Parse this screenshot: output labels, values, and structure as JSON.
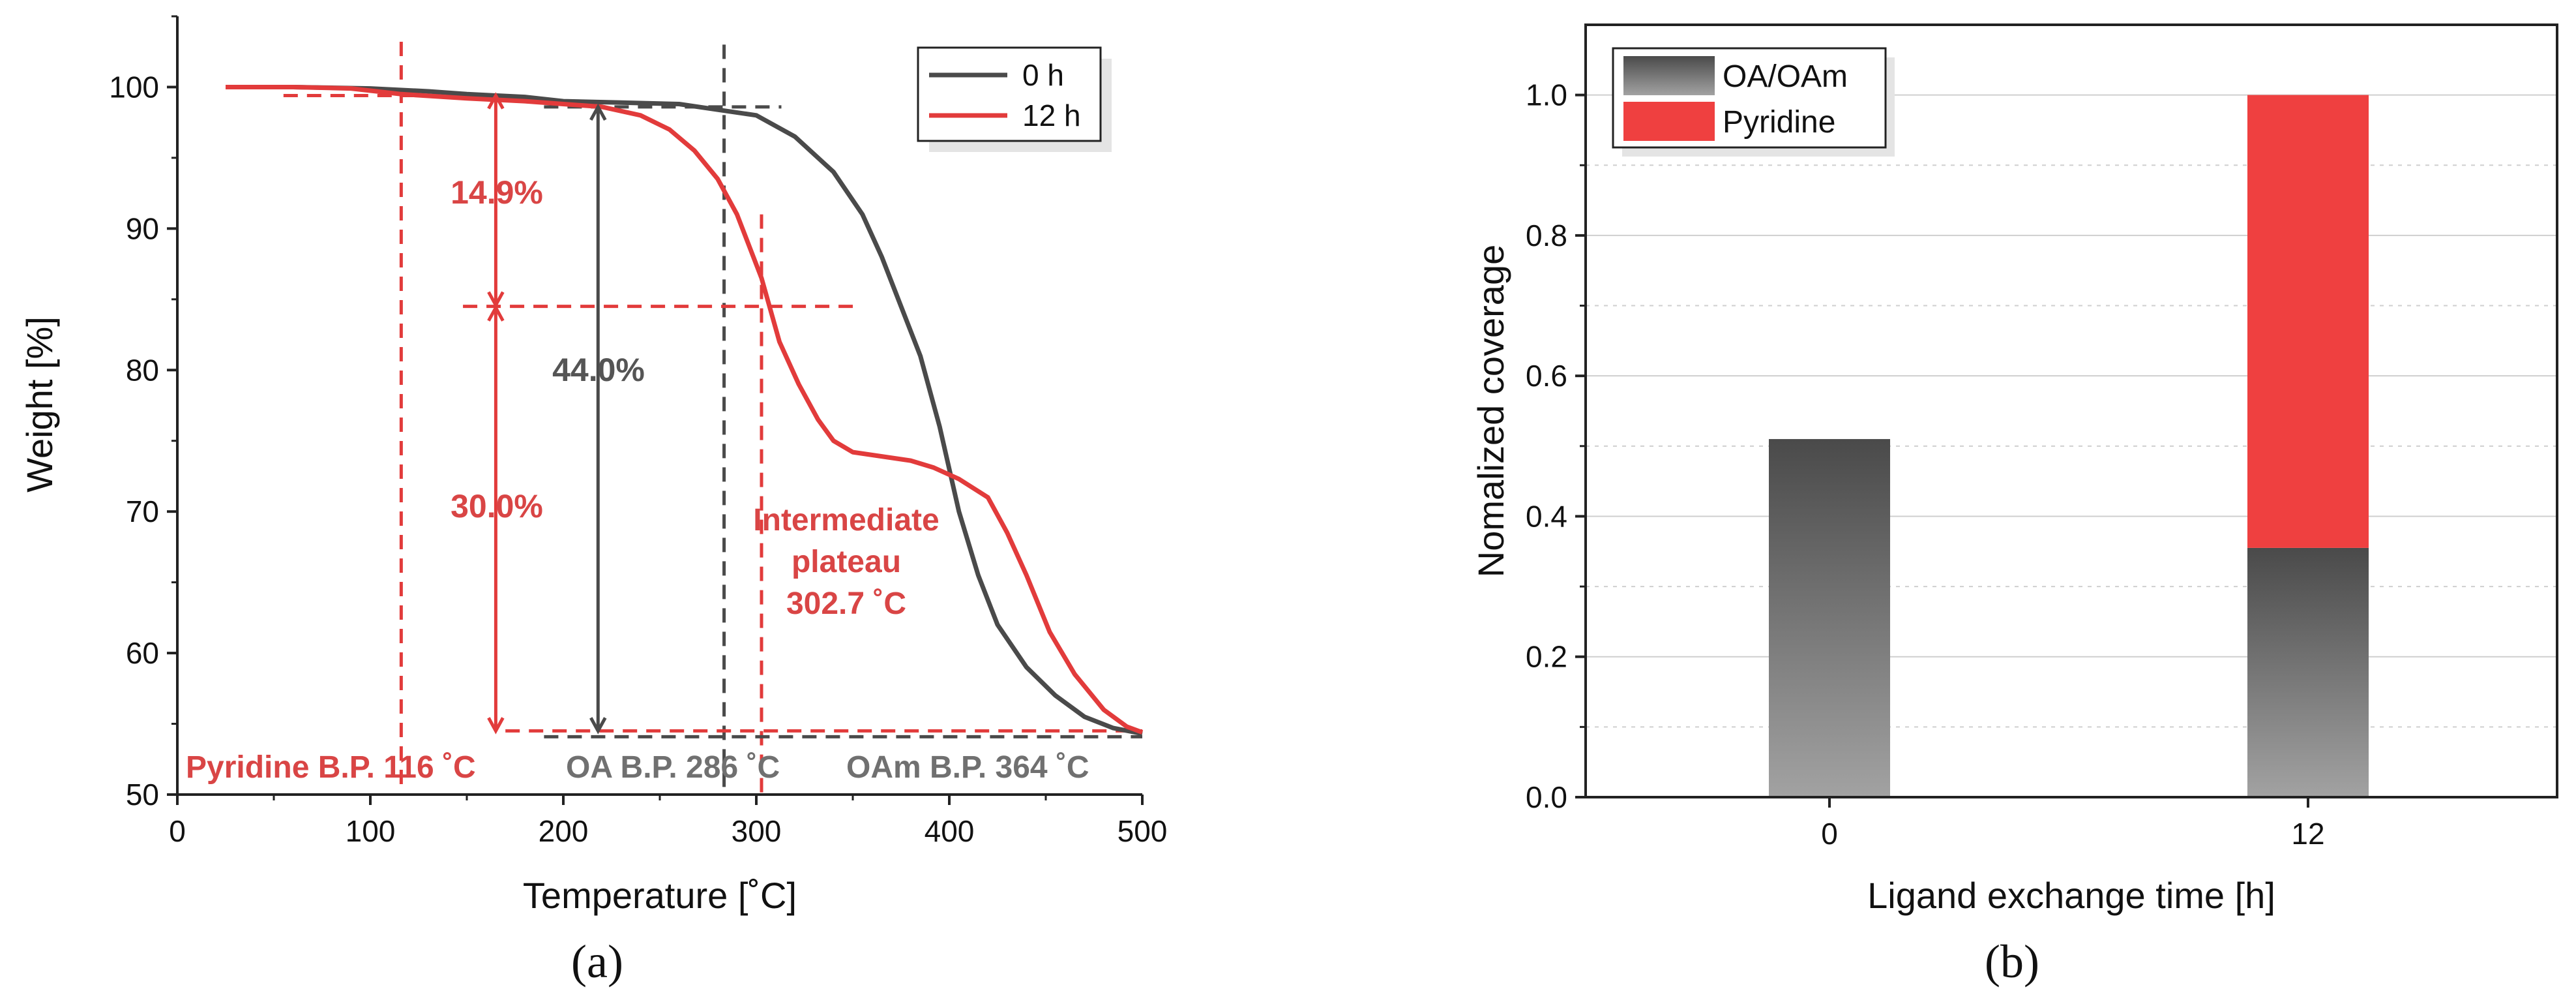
{
  "colors": {
    "dark": "#4a4a4a",
    "red": "#e23b3b",
    "red_text": "#d94545",
    "grid": "#cfcfcf",
    "axis": "#222222",
    "gray_grad_top": "#4a4a4a",
    "gray_grad_bottom": "#a2a2a2",
    "pyridine_fill": "#ef4040"
  },
  "chart_data": [
    {
      "panel": "(a)",
      "type": "line",
      "xlabel": "Temperature [˚C]",
      "ylabel": "Weight [%]",
      "xlim": [
        0,
        500
      ],
      "ylim": [
        50,
        105
      ],
      "xticks": [
        0,
        100,
        200,
        300,
        400,
        500
      ],
      "yticks": [
        50,
        60,
        70,
        80,
        90,
        100
      ],
      "legend_position": "top-right",
      "series": [
        {
          "name": "0 h",
          "color": "#4a4a4a",
          "points": [
            [
              25,
              100
            ],
            [
              60,
              100
            ],
            [
              100,
              99.9
            ],
            [
              130,
              99.7
            ],
            [
              150,
              99.5
            ],
            [
              180,
              99.3
            ],
            [
              200,
              99.0
            ],
            [
              230,
              98.9
            ],
            [
              260,
              98.8
            ],
            [
              280,
              98.4
            ],
            [
              300,
              98.0
            ],
            [
              320,
              96.5
            ],
            [
              340,
              94.0
            ],
            [
              355,
              91.0
            ],
            [
              365,
              88.0
            ],
            [
              375,
              84.5
            ],
            [
              385,
              81.0
            ],
            [
              395,
              76.0
            ],
            [
              405,
              70.0
            ],
            [
              415,
              65.5
            ],
            [
              425,
              62.0
            ],
            [
              440,
              59.0
            ],
            [
              455,
              57.0
            ],
            [
              470,
              55.5
            ],
            [
              485,
              54.7
            ],
            [
              500,
              54.3
            ]
          ]
        },
        {
          "name": "12 h",
          "color": "#e23b3b",
          "points": [
            [
              25,
              100
            ],
            [
              60,
              100
            ],
            [
              90,
              99.9
            ],
            [
              116,
              99.5
            ],
            [
              150,
              99.2
            ],
            [
              180,
              99.0
            ],
            [
              200,
              98.8
            ],
            [
              220,
              98.6
            ],
            [
              240,
              98.0
            ],
            [
              255,
              97.0
            ],
            [
              268,
              95.5
            ],
            [
              280,
              93.5
            ],
            [
              290,
              91.0
            ],
            [
              302.7,
              86.5
            ],
            [
              312,
              82.0
            ],
            [
              322,
              79.0
            ],
            [
              332,
              76.5
            ],
            [
              340,
              75.0
            ],
            [
              350,
              74.2
            ],
            [
              365,
              73.9
            ],
            [
              380,
              73.6
            ],
            [
              392,
              73.1
            ],
            [
              405,
              72.3
            ],
            [
              420,
              71.0
            ],
            [
              430,
              68.5
            ],
            [
              440,
              65.5
            ],
            [
              452,
              61.5
            ],
            [
              465,
              58.5
            ],
            [
              480,
              56.0
            ],
            [
              492,
              54.8
            ],
            [
              500,
              54.4
            ]
          ]
        }
      ],
      "annotations": {
        "pct_top": "14.9%",
        "pct_total": "44.0%",
        "pct_bottom": "30.0%",
        "plateau_line1": "Intermediate",
        "plateau_line2": "plateau",
        "plateau_line3": "302.7 ˚C",
        "bp_pyridine": "Pyridine B.P. 116 ˚C",
        "bp_oa": "OA B.P. 286 ˚C",
        "bp_oam": "OAm B.P. 364 ˚C"
      },
      "reference_lines": {
        "pyridine_bp_x": 116,
        "oa_bp_x": 286,
        "plateau_x": 302.7,
        "start_weight": 99.4,
        "oa_loss_start": 98.6,
        "plateau_weight": 84.5,
        "end_weight": 54.5,
        "red_arrow_x": 165,
        "gray_arrow_x": 218
      }
    },
    {
      "panel": "(b)",
      "type": "bar",
      "stacked": true,
      "xlabel": "Ligand exchange time [h]",
      "ylabel": "Nomalized coverage",
      "categories": [
        "0",
        "12"
      ],
      "ylim": [
        0,
        1.1
      ],
      "yticks": [
        0.0,
        0.2,
        0.4,
        0.6,
        0.8,
        1.0
      ],
      "legend_position": "top-left",
      "series": [
        {
          "name": "OA/OAm",
          "values": [
            0.51,
            0.355
          ]
        },
        {
          "name": "Pyridine",
          "values": [
            0,
            0.645
          ]
        }
      ]
    }
  ],
  "captions": [
    "(a)",
    "(b)"
  ]
}
